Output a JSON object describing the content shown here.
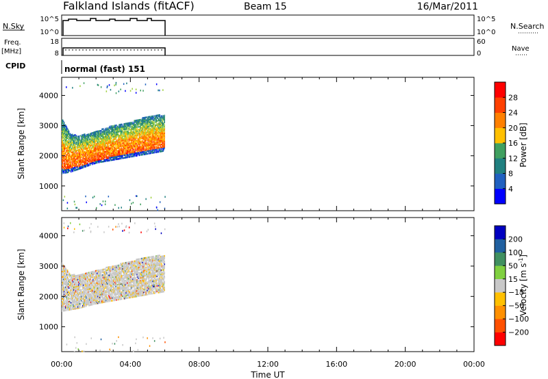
{
  "header": {
    "station": "Falkland Islands (fitACF)",
    "beam": "Beam 15",
    "date": "16/Mar/2011"
  },
  "nsky_panel": {
    "left_label": "N.Sky",
    "left_ticks": [
      "10^5",
      "10^0"
    ],
    "right_ticks": [
      "10^5",
      "10^0"
    ],
    "right_label": "N.Search"
  },
  "freq_panel": {
    "left_label_line1": "Freq.",
    "left_label_line2": "[MHz]",
    "left_ticks": [
      "18",
      "8"
    ],
    "right_ticks": [
      "60",
      "0"
    ],
    "right_label": "Nave"
  },
  "cpid_panel": {
    "label": "CPID",
    "mode": "normal (fast) 151"
  },
  "colors": {
    "power": [
      "#0000ff",
      "#2060c0",
      "#208080",
      "#40a060",
      "#a0d040",
      "#ffc000",
      "#ff8000",
      "#ff4000",
      "#ff0000"
    ],
    "velocity": [
      "#ff0000",
      "#ff5000",
      "#ff9000",
      "#ffc000",
      "#c8c8c8",
      "#80d040",
      "#409060",
      "#2060a0",
      "#0000c0"
    ]
  },
  "chart_data": [
    {
      "type": "heatmap",
      "name": "power",
      "ylabel": "Slant Range [km]",
      "xlabel": "",
      "x_ticks": [
        "00:00",
        "04:00",
        "08:00",
        "12:00",
        "16:00",
        "20:00",
        "00:00"
      ],
      "xlim_hours": [
        0,
        24
      ],
      "y_ticks": [
        1000,
        2000,
        3000,
        4000
      ],
      "ylim": [
        180,
        4600
      ],
      "colorbar_label": "Power [dB]",
      "colorbar_ticks": [
        4,
        8,
        12,
        16,
        20,
        24,
        28
      ],
      "colorbar_range": [
        0,
        32
      ],
      "data_extent_hours": [
        0,
        6
      ],
      "scatter_band": [
        {
          "t": 0.0,
          "lo": 1400,
          "hi": 3200
        },
        {
          "t": 0.5,
          "lo": 1450,
          "hi": 2700
        },
        {
          "t": 1.0,
          "lo": 1550,
          "hi": 2650
        },
        {
          "t": 2.0,
          "lo": 1750,
          "hi": 2800
        },
        {
          "t": 3.0,
          "lo": 1850,
          "hi": 3000
        },
        {
          "t": 4.0,
          "lo": 1950,
          "hi": 3100
        },
        {
          "t": 5.0,
          "lo": 2050,
          "hi": 3300
        },
        {
          "t": 6.0,
          "lo": 2150,
          "hi": 3350
        }
      ]
    },
    {
      "type": "heatmap",
      "name": "velocity",
      "ylabel": "Slant Range [km]",
      "xlabel": "Time UT",
      "x_ticks": [
        "00:00",
        "04:00",
        "08:00",
        "12:00",
        "16:00",
        "20:00",
        "00:00"
      ],
      "xlim_hours": [
        0,
        24
      ],
      "y_ticks": [
        1000,
        2000,
        3000,
        4000
      ],
      "ylim": [
        180,
        4600
      ],
      "colorbar_label_main": "Velocity [m s",
      "colorbar_label_sup": "-1",
      "colorbar_label_end": "]",
      "colorbar_ticks": [
        "200",
        "100",
        "50",
        "15",
        "−15",
        "−50",
        "−100",
        "−200"
      ],
      "data_extent_hours": [
        0,
        6
      ],
      "scatter_band": [
        {
          "t": 0.0,
          "lo": 1500,
          "hi": 3100
        },
        {
          "t": 0.5,
          "lo": 1550,
          "hi": 2700
        },
        {
          "t": 1.0,
          "lo": 1600,
          "hi": 2700
        },
        {
          "t": 2.0,
          "lo": 1750,
          "hi": 2850
        },
        {
          "t": 3.0,
          "lo": 1850,
          "hi": 3000
        },
        {
          "t": 4.0,
          "lo": 1950,
          "hi": 3150
        },
        {
          "t": 5.0,
          "lo": 2050,
          "hi": 3300
        },
        {
          "t": 6.0,
          "lo": 2150,
          "hi": 3350
        }
      ]
    }
  ]
}
